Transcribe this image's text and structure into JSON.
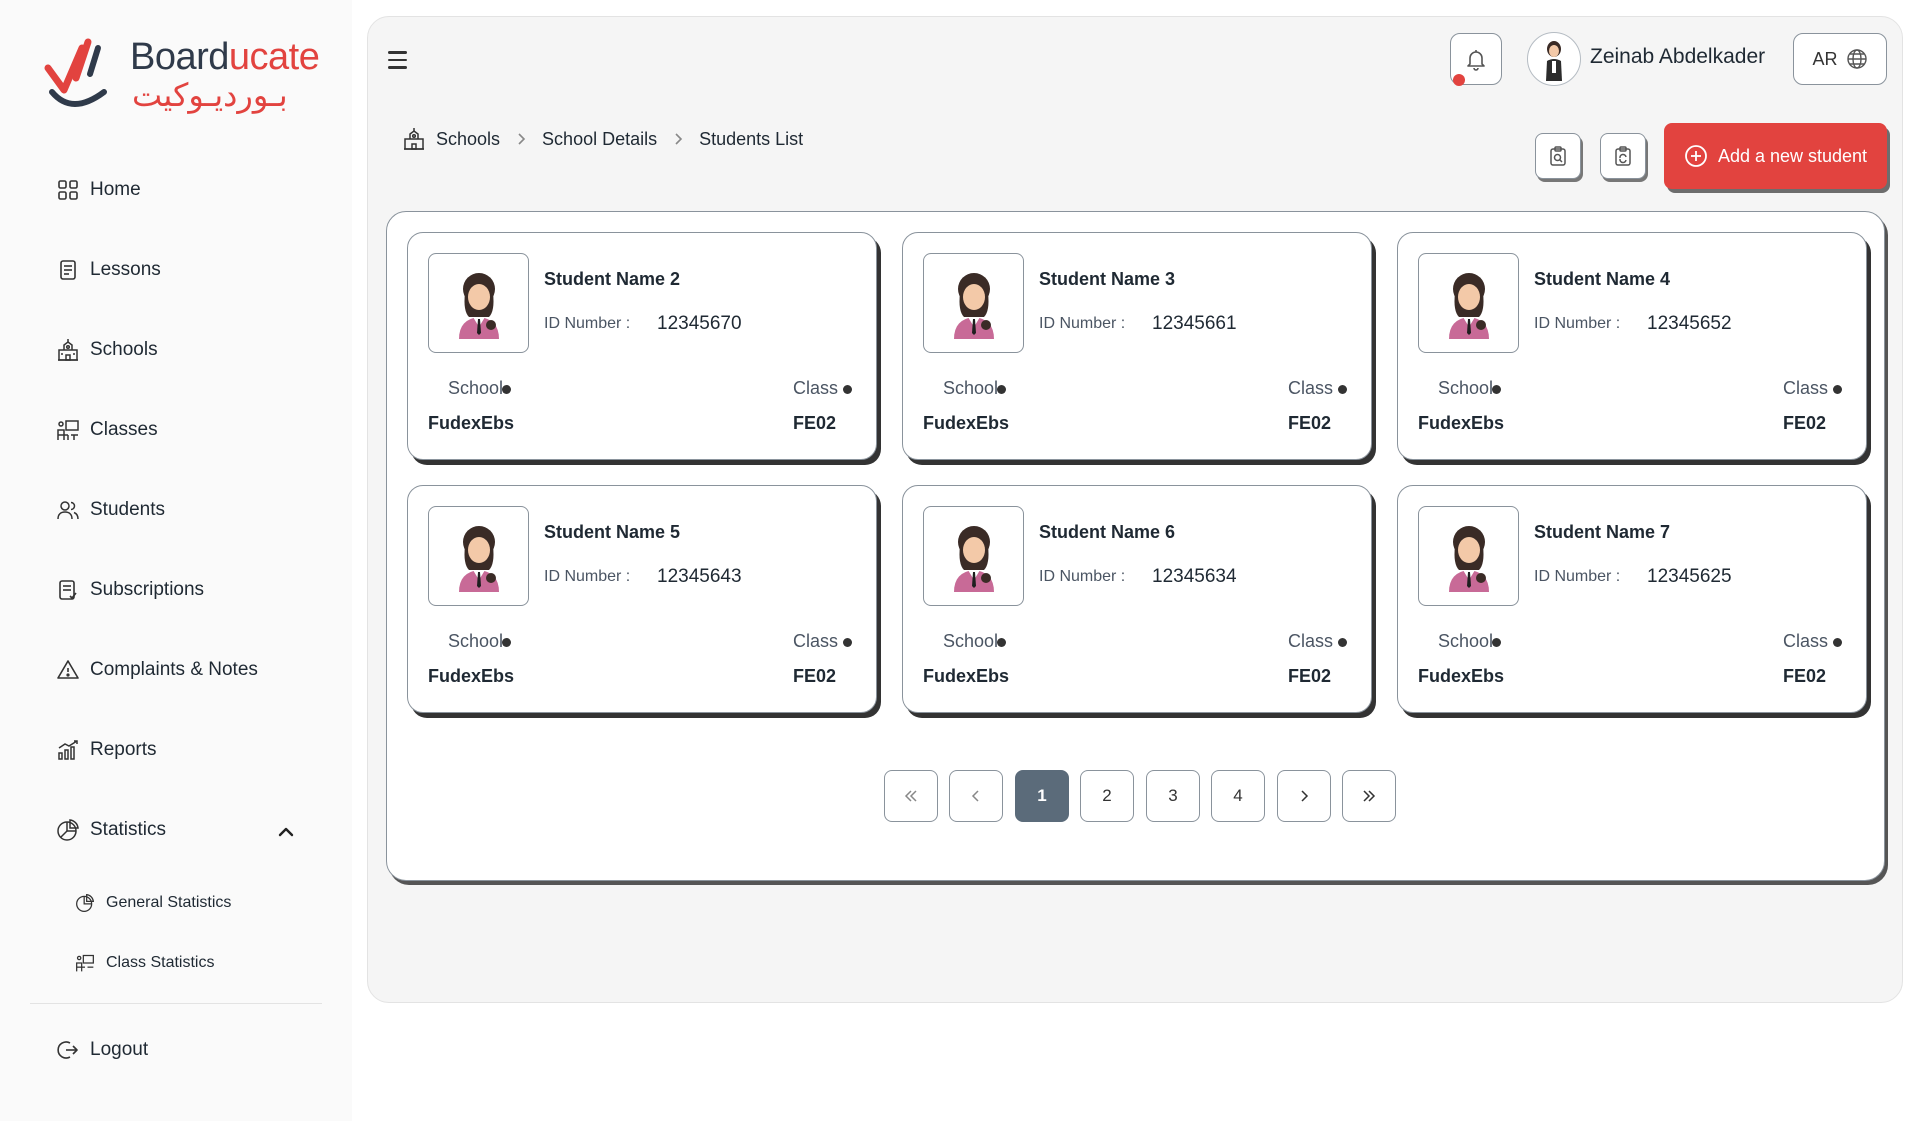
{
  "brand": {
    "name_en_part1": "Board",
    "name_en_part2": "ucate",
    "name_ar": "بـورديـوكيت"
  },
  "sidebar": {
    "items": [
      {
        "label": "Home",
        "icon": "grid-icon"
      },
      {
        "label": "Lessons",
        "icon": "document-icon"
      },
      {
        "label": "Schools",
        "icon": "school-icon"
      },
      {
        "label": "Classes",
        "icon": "classroom-icon"
      },
      {
        "label": "Students",
        "icon": "users-icon"
      },
      {
        "label": "Subscriptions",
        "icon": "receipt-icon"
      },
      {
        "label": "Complaints & Notes",
        "icon": "warning-icon"
      },
      {
        "label": "Reports",
        "icon": "chart-icon"
      },
      {
        "label": "Statistics",
        "icon": "pie-chart-icon"
      }
    ],
    "sub_items": [
      {
        "label": "General Statistics",
        "icon": "pie-chart-icon"
      },
      {
        "label": "Class Statistics",
        "icon": "classroom-icon"
      }
    ],
    "logout": "Logout"
  },
  "header": {
    "user_name": "Zeinab Abdelkader",
    "lang": "AR"
  },
  "breadcrumb": [
    "Schools",
    "School Details",
    "Students List"
  ],
  "actions": {
    "add_label": "Add a new student"
  },
  "card_labels": {
    "id": "ID Number :",
    "school": "School",
    "class": "Class"
  },
  "students": [
    {
      "name": "Student Name 2",
      "id": "12345670",
      "school": "FudexEbs",
      "class": "FE02"
    },
    {
      "name": "Student Name 3",
      "id": "12345661",
      "school": "FudexEbs",
      "class": "FE02"
    },
    {
      "name": "Student Name 4",
      "id": "12345652",
      "school": "FudexEbs",
      "class": "FE02"
    },
    {
      "name": "Student Name 5",
      "id": "12345643",
      "school": "FudexEbs",
      "class": "FE02"
    },
    {
      "name": "Student Name 6",
      "id": "12345634",
      "school": "FudexEbs",
      "class": "FE02"
    },
    {
      "name": "Student Name 7",
      "id": "12345625",
      "school": "FudexEbs",
      "class": "FE02"
    }
  ],
  "pagination": {
    "pages": [
      "1",
      "2",
      "3",
      "4"
    ],
    "current": "1"
  },
  "colors": {
    "accent": "#e2433f",
    "active_page": "#5b6b7a"
  }
}
